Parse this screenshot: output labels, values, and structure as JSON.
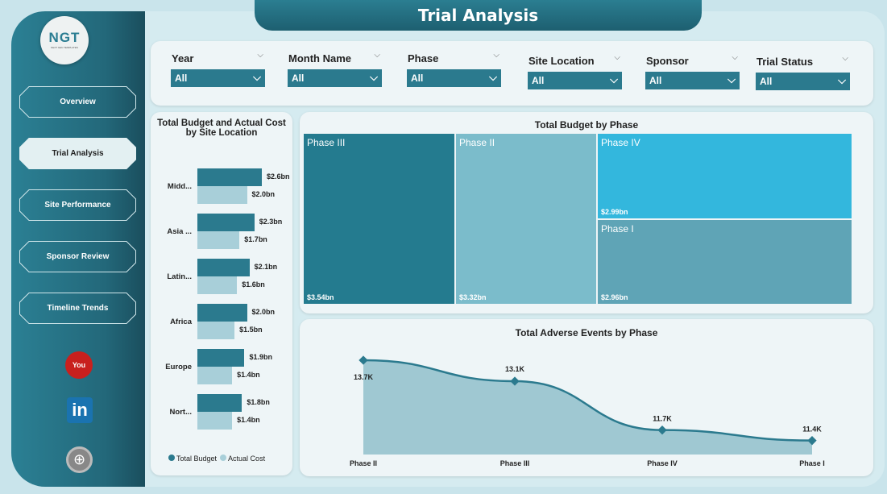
{
  "header": {
    "title": "Trial Analysis"
  },
  "logo": {
    "text": "NGT",
    "subtitle": "NEXT GEN TEMPLATES"
  },
  "nav": [
    {
      "label": "Overview",
      "active": false
    },
    {
      "label": "Trial Analysis",
      "active": true
    },
    {
      "label": "Site Performance",
      "active": false
    },
    {
      "label": "Sponsor Review",
      "active": false
    },
    {
      "label": "Timeline Trends",
      "active": false
    }
  ],
  "social": [
    "youtube-icon",
    "linkedin-icon",
    "globe-icon"
  ],
  "filters": [
    {
      "label": "Year",
      "value": "All"
    },
    {
      "label": "Month Name",
      "value": "All"
    },
    {
      "label": "Phase",
      "value": "All"
    },
    {
      "label": "Site Location",
      "value": "All"
    },
    {
      "label": "Sponsor",
      "value": "All"
    },
    {
      "label": "Trial Status",
      "value": "All"
    }
  ],
  "colors": {
    "primary": "#2b7a8e",
    "secondary": "#a8cfd9",
    "phase3": "#247b8f",
    "phase2": "#7bbccb",
    "phase4": "#33b7dd",
    "phase1": "#5fa4b6"
  },
  "chart_data": [
    {
      "type": "bar",
      "title": "Total Budget and Actual Cost by Site Location",
      "orientation": "horizontal",
      "categories": [
        "Midd...",
        "Asia ...",
        "Latin...",
        "Africa",
        "Europe",
        "Nort..."
      ],
      "series": [
        {
          "name": "Total Budget",
          "values": [
            2.6,
            2.3,
            2.1,
            2.0,
            1.9,
            1.8
          ],
          "labels": [
            "$2.6bn",
            "$2.3bn",
            "$2.1bn",
            "$2.0bn",
            "$1.9bn",
            "$1.8bn"
          ]
        },
        {
          "name": "Actual Cost",
          "values": [
            2.0,
            1.7,
            1.6,
            1.5,
            1.4,
            1.4
          ],
          "labels": [
            "$2.0bn",
            "$1.7bn",
            "$1.6bn",
            "$1.5bn",
            "$1.4bn",
            "$1.4bn"
          ]
        }
      ],
      "legend": "bottom"
    },
    {
      "type": "treemap",
      "title": "Total Budget by Phase",
      "categories": [
        "Phase III",
        "Phase II",
        "Phase IV",
        "Phase I"
      ],
      "values": [
        3.54,
        3.32,
        2.99,
        2.96
      ],
      "labels": [
        "$3.54bn",
        "$3.32bn",
        "$2.99bn",
        "$2.96bn"
      ]
    },
    {
      "type": "area",
      "title": "Total Adverse Events by Phase",
      "categories": [
        "Phase II",
        "Phase III",
        "Phase IV",
        "Phase I"
      ],
      "values": [
        13.7,
        13.1,
        11.7,
        11.4
      ],
      "labels": [
        "13.7K",
        "13.1K",
        "11.7K",
        "11.4K"
      ],
      "ylim": [
        11,
        14
      ]
    }
  ]
}
